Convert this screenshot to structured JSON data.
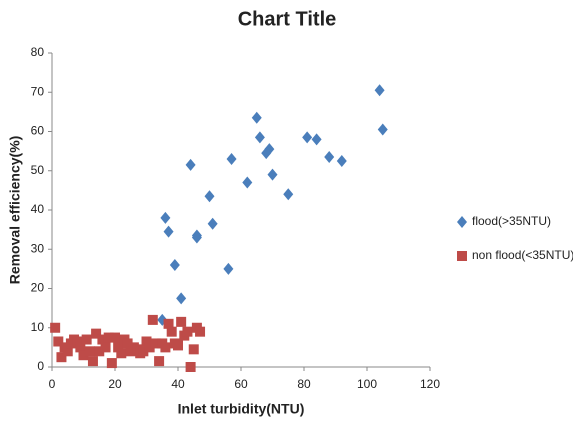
{
  "chart_data": {
    "type": "scatter",
    "title": "Chart Title",
    "x_label": "Inlet turbidity(NTU)",
    "y_label": "Removal efficiency(%)",
    "xlim": [
      0,
      120
    ],
    "xticks": [
      0,
      20,
      40,
      60,
      80,
      100,
      120
    ],
    "ylim": [
      0,
      80
    ],
    "yticks": [
      0,
      10,
      20,
      30,
      40,
      50,
      60,
      70,
      80
    ],
    "grid": false,
    "legend": "right",
    "series": [
      {
        "name": "flood(>35NTU)",
        "color": "#4a7ebb",
        "marker": "diamond",
        "x": [
          36,
          37,
          35,
          39,
          41,
          44,
          46,
          46,
          50,
          51,
          56,
          57,
          62,
          65,
          66,
          68,
          69,
          70,
          75,
          81,
          84,
          88,
          92,
          104,
          105
        ],
        "values": [
          38,
          34.5,
          12,
          26,
          17.5,
          51.5,
          33,
          33.5,
          43.5,
          36.5,
          25,
          53,
          47,
          63.5,
          58.5,
          54.5,
          55.5,
          49,
          44,
          58.5,
          58,
          53.5,
          52.5,
          70.5,
          60.5
        ]
      },
      {
        "name": "non flood(<35NTU)",
        "color": "#be4b48",
        "marker": "square",
        "x": [
          1,
          2,
          3,
          4,
          5,
          6,
          7,
          8,
          9,
          10,
          11,
          12,
          13,
          14,
          15,
          16,
          17,
          18,
          19,
          20,
          21,
          22,
          23,
          24,
          25,
          26,
          27,
          28,
          29,
          30,
          31,
          32,
          33,
          34,
          35,
          36,
          37,
          38,
          39,
          40,
          41,
          42,
          43,
          44,
          45,
          46,
          47
        ],
        "values": [
          10,
          6.5,
          2.5,
          5,
          4,
          6,
          7,
          6.5,
          5,
          3,
          7,
          4,
          1.5,
          8.5,
          4,
          7,
          5,
          7.5,
          1,
          7.5,
          5,
          3.5,
          7,
          6,
          4,
          5,
          4.5,
          3.5,
          4,
          6.5,
          5,
          12,
          6,
          1.5,
          6,
          5,
          11,
          9,
          6,
          5.5,
          11.5,
          8,
          9,
          0,
          4.5,
          10,
          9
        ]
      }
    ]
  }
}
